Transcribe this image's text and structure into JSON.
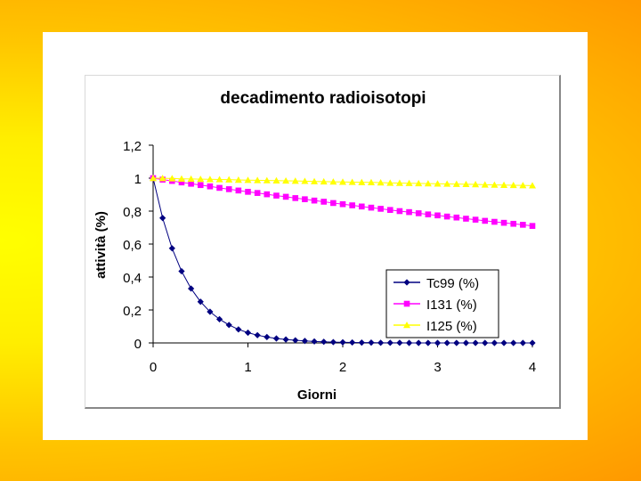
{
  "chart_data": {
    "type": "line",
    "title": "decadimento radioisotopi",
    "xlabel": "Giorni",
    "ylabel": "attività (%)",
    "xlim": [
      0,
      4
    ],
    "ylim": [
      0,
      1.2
    ],
    "x_ticks": [
      "0",
      "1",
      "2",
      "3",
      "4"
    ],
    "y_ticks": [
      "0",
      "0,2",
      "0,4",
      "0,6",
      "0,8",
      "1",
      "1,2"
    ],
    "legend_position": "bottom-right",
    "x": [
      0,
      0.1,
      0.2,
      0.3,
      0.4,
      0.5,
      0.6,
      0.7,
      0.8,
      0.9,
      1.0,
      1.1,
      1.2,
      1.3,
      1.4,
      1.5,
      1.6,
      1.7,
      1.8,
      1.9,
      2.0,
      2.1,
      2.2,
      2.3,
      2.4,
      2.5,
      2.6,
      2.7,
      2.8,
      2.9,
      3.0,
      3.1,
      3.2,
      3.3,
      3.4,
      3.5,
      3.6,
      3.7,
      3.8,
      3.9,
      4.0
    ],
    "series": [
      {
        "name": "Tc99 (%)",
        "color": "#000080",
        "marker": "diamond",
        "values": [
          1,
          0.758,
          0.574,
          0.435,
          0.33,
          0.25,
          0.189,
          0.144,
          0.109,
          0.082,
          0.062,
          0.047,
          0.036,
          0.027,
          0.021,
          0.016,
          0.012,
          0.009,
          0.007,
          0.005,
          0.004,
          0.003,
          0.002,
          0.002,
          0.001,
          0.001,
          0.001,
          0,
          0,
          0,
          0,
          0,
          0,
          0,
          0,
          0,
          0,
          0,
          0,
          0,
          0
        ]
      },
      {
        "name": "I131 (%)",
        "color": "#ff00ff",
        "marker": "square",
        "values": [
          1,
          0.991,
          0.983,
          0.974,
          0.966,
          0.958,
          0.95,
          0.941,
          0.933,
          0.925,
          0.917,
          0.91,
          0.902,
          0.894,
          0.887,
          0.879,
          0.872,
          0.864,
          0.857,
          0.849,
          0.842,
          0.835,
          0.828,
          0.821,
          0.814,
          0.807,
          0.8,
          0.794,
          0.787,
          0.78,
          0.774,
          0.767,
          0.761,
          0.754,
          0.748,
          0.741,
          0.735,
          0.729,
          0.723,
          0.717,
          0.71
        ]
      },
      {
        "name": "I125 (%)",
        "color": "#ffff00",
        "marker": "triangle",
        "values": [
          1,
          0.999,
          0.998,
          0.996,
          0.995,
          0.994,
          0.993,
          0.992,
          0.991,
          0.989,
          0.988,
          0.987,
          0.986,
          0.985,
          0.984,
          0.983,
          0.982,
          0.98,
          0.979,
          0.978,
          0.977,
          0.976,
          0.975,
          0.974,
          0.973,
          0.971,
          0.97,
          0.969,
          0.968,
          0.967,
          0.966,
          0.965,
          0.964,
          0.963,
          0.962,
          0.96,
          0.959,
          0.958,
          0.957,
          0.956,
          0.955
        ]
      }
    ]
  }
}
